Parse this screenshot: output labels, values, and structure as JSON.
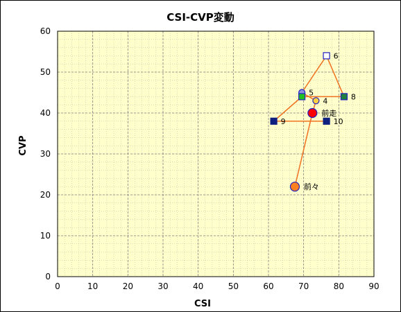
{
  "chart_data": {
    "type": "scatter",
    "title": "CSI-CVP変動",
    "xlabel": "CSI",
    "ylabel": "CVP",
    "xlim": [
      0,
      90
    ],
    "ylim": [
      0,
      60
    ],
    "xticks": [
      "0",
      "10",
      "20",
      "30",
      "40",
      "50",
      "60",
      "70",
      "80",
      "90"
    ],
    "yticks": [
      "0",
      "10",
      "20",
      "30",
      "40",
      "50",
      "60"
    ],
    "grid": true,
    "background_color": "#ffffcc",
    "grid_color": "#808080",
    "line_color": "#f07020",
    "points": [
      {
        "label": "前々",
        "x": 67.5,
        "y": 22,
        "marker": "circle",
        "fill": "#ff8020",
        "stroke": "#2020c0",
        "size": "large"
      },
      {
        "label": "前走",
        "x": 72.5,
        "y": 40,
        "marker": "circle",
        "fill": "#ff0000",
        "stroke": "#2020c0",
        "size": "large"
      },
      {
        "label": "4",
        "x": 73.5,
        "y": 43,
        "marker": "circle",
        "fill": "#ffd040",
        "stroke": "#2020c0",
        "size": "small"
      },
      {
        "label": "5",
        "x": 69.5,
        "y": 45,
        "marker": "circle",
        "fill": "#9090e0",
        "stroke": "#2020c0",
        "size": "small"
      },
      {
        "label": "6",
        "x": 76.5,
        "y": 54,
        "marker": "square",
        "fill": "#ffffff",
        "stroke": "#2020c0",
        "size": "small"
      },
      {
        "label": "",
        "x": 69.5,
        "y": 44,
        "marker": "square",
        "fill": "#20c020",
        "stroke": "#2020c0",
        "size": "small"
      },
      {
        "label": "8",
        "x": 81.5,
        "y": 44,
        "marker": "square",
        "fill": "#208040",
        "stroke": "#2020c0",
        "size": "small"
      },
      {
        "label": "9",
        "x": 61.5,
        "y": 38,
        "marker": "square",
        "fill": "#102080",
        "stroke": "#102080",
        "size": "small"
      },
      {
        "label": "10",
        "x": 76.5,
        "y": 38,
        "marker": "square",
        "fill": "#102080",
        "stroke": "#102080",
        "size": "small"
      }
    ],
    "path_order": [
      8,
      7,
      5,
      6,
      4,
      3,
      2,
      1,
      0
    ]
  }
}
